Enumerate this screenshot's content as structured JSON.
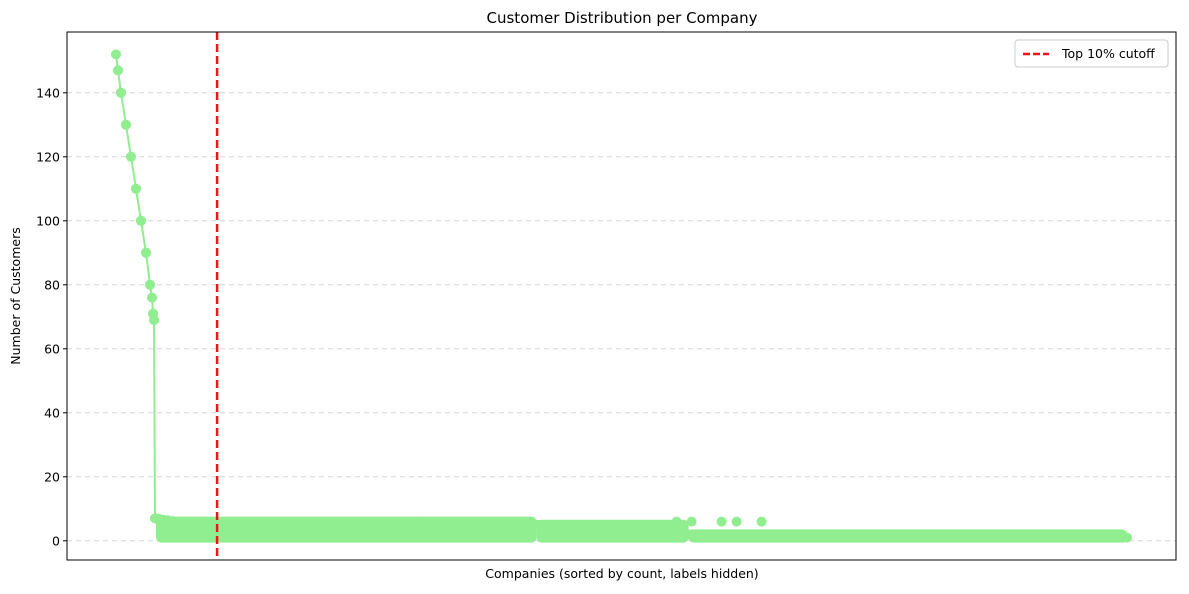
{
  "chart_data": {
    "type": "line",
    "title": "Customer Distribution per Company",
    "xlabel": "Companies (sorted by count, labels hidden)",
    "ylabel": "Number of Customers",
    "x_ticks_hidden": true,
    "ylim": [
      -6,
      159
    ],
    "yticks": [
      0,
      20,
      40,
      60,
      80,
      100,
      120,
      140
    ],
    "grid": {
      "y": true,
      "x": false,
      "style": "dashed"
    },
    "legend_position": "top-right",
    "colors": {
      "series": "#90ee90",
      "cutoff": "#e8161b",
      "grid": "#d6d6d6"
    },
    "series": [
      {
        "values_profile": [
          [
            0,
            152
          ],
          [
            2,
            147
          ],
          [
            5,
            140
          ],
          [
            10,
            130
          ],
          [
            15,
            120
          ],
          [
            20,
            110
          ],
          [
            25,
            100
          ],
          [
            30,
            90
          ],
          [
            34,
            80
          ],
          [
            36,
            76
          ],
          [
            37,
            71
          ],
          [
            38,
            69
          ],
          [
            39,
            7
          ],
          [
            60,
            6
          ],
          [
            100,
            5
          ],
          [
            300,
            5
          ],
          [
            420,
            5
          ],
          [
            560,
            4
          ],
          [
            572,
            2
          ],
          [
            1010,
            1
          ]
        ],
        "x_range": [
          0,
          1010
        ]
      }
    ],
    "cutoff_line": {
      "label": "Top 10% cutoff",
      "x": 101
    }
  }
}
